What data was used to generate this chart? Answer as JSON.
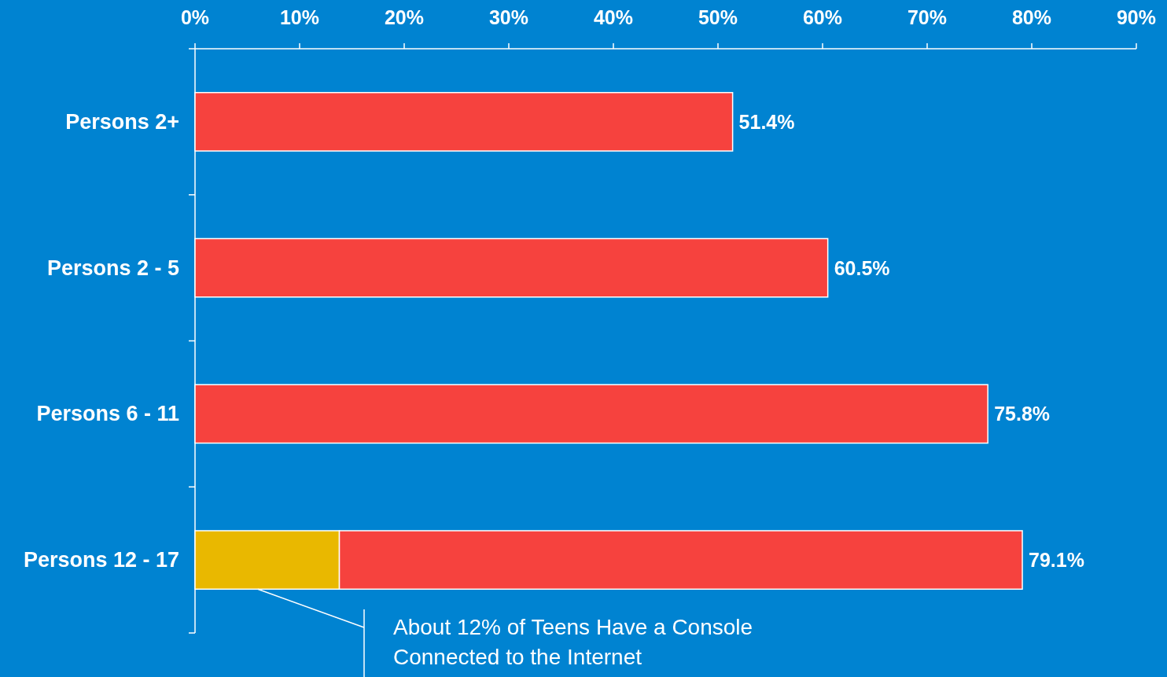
{
  "chart_data": {
    "type": "bar",
    "orientation": "horizontal",
    "stacked": true,
    "categories": [
      "Persons 2+",
      "Persons 2 - 5",
      "Persons 6 - 11",
      "Persons 12 - 17"
    ],
    "series": [
      {
        "color": "#e9b800",
        "values": [
          null,
          null,
          null,
          13.8
        ]
      },
      {
        "color": "#f6423e",
        "values": [
          51.4,
          60.5,
          75.8,
          65.3
        ]
      }
    ],
    "totals": [
      "51.4%",
      "60.5%",
      "75.8%",
      "79.1%"
    ],
    "xlim": [
      0,
      90
    ],
    "xticks": [
      {
        "value": 0,
        "label": "0%"
      },
      {
        "value": 10,
        "label": "10%"
      },
      {
        "value": 20,
        "label": "20%"
      },
      {
        "value": 30,
        "label": "30%"
      },
      {
        "value": 40,
        "label": "40%"
      },
      {
        "value": 50,
        "label": "50%"
      },
      {
        "value": 60,
        "label": "60%"
      },
      {
        "value": 70,
        "label": "70%"
      },
      {
        "value": 80,
        "label": "80%"
      },
      {
        "value": 90,
        "label": "90%"
      }
    ],
    "annotations": [
      "About 12% of Teens Have a Console Connected to the Internet"
    ]
  }
}
